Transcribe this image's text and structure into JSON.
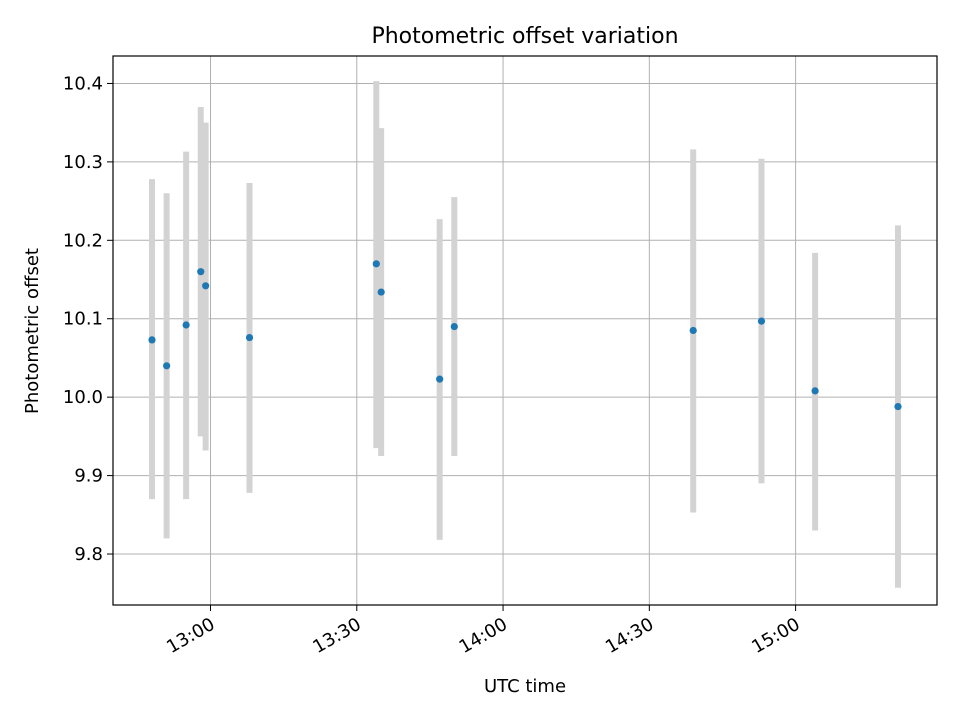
{
  "chart_data": {
    "type": "scatter",
    "title": "Photometric offset variation",
    "xlabel": "UTC time",
    "ylabel": "Photometric offset",
    "x_ticks": [
      "13:00",
      "13:30",
      "14:00",
      "14:30",
      "15:00"
    ],
    "y_ticks": [
      "9.8",
      "9.9",
      "10.0",
      "10.1",
      "10.2",
      "10.3",
      "10.4"
    ],
    "xlim": [
      "12:40",
      "15:29"
    ],
    "ylim": [
      9.735,
      10.435
    ],
    "grid": true,
    "colors": {
      "points": "#1f77b4",
      "errorbars": "#d3d3d3",
      "grid": "#b0b0b0"
    },
    "points": [
      {
        "x": "12:48",
        "y": 10.073,
        "y_low": 9.87,
        "y_high": 10.278
      },
      {
        "x": "12:51",
        "y": 10.04,
        "y_low": 9.82,
        "y_high": 10.26
      },
      {
        "x": "12:55",
        "y": 10.092,
        "y_low": 9.87,
        "y_high": 10.313
      },
      {
        "x": "12:58",
        "y": 10.16,
        "y_low": 9.95,
        "y_high": 10.37
      },
      {
        "x": "12:59",
        "y": 10.142,
        "y_low": 9.932,
        "y_high": 10.35
      },
      {
        "x": "13:08",
        "y": 10.076,
        "y_low": 9.878,
        "y_high": 10.273
      },
      {
        "x": "13:34",
        "y": 10.17,
        "y_low": 9.935,
        "y_high": 10.403
      },
      {
        "x": "13:35",
        "y": 10.134,
        "y_low": 9.925,
        "y_high": 10.343
      },
      {
        "x": "13:47",
        "y": 10.023,
        "y_low": 9.818,
        "y_high": 10.227
      },
      {
        "x": "13:50",
        "y": 10.09,
        "y_low": 9.925,
        "y_high": 10.255
      },
      {
        "x": "14:39",
        "y": 10.085,
        "y_low": 9.853,
        "y_high": 10.316
      },
      {
        "x": "14:53",
        "y": 10.097,
        "y_low": 9.89,
        "y_high": 10.304
      },
      {
        "x": "15:04",
        "y": 10.008,
        "y_low": 9.83,
        "y_high": 10.184
      },
      {
        "x": "15:21",
        "y": 9.988,
        "y_low": 9.757,
        "y_high": 10.219
      }
    ]
  }
}
